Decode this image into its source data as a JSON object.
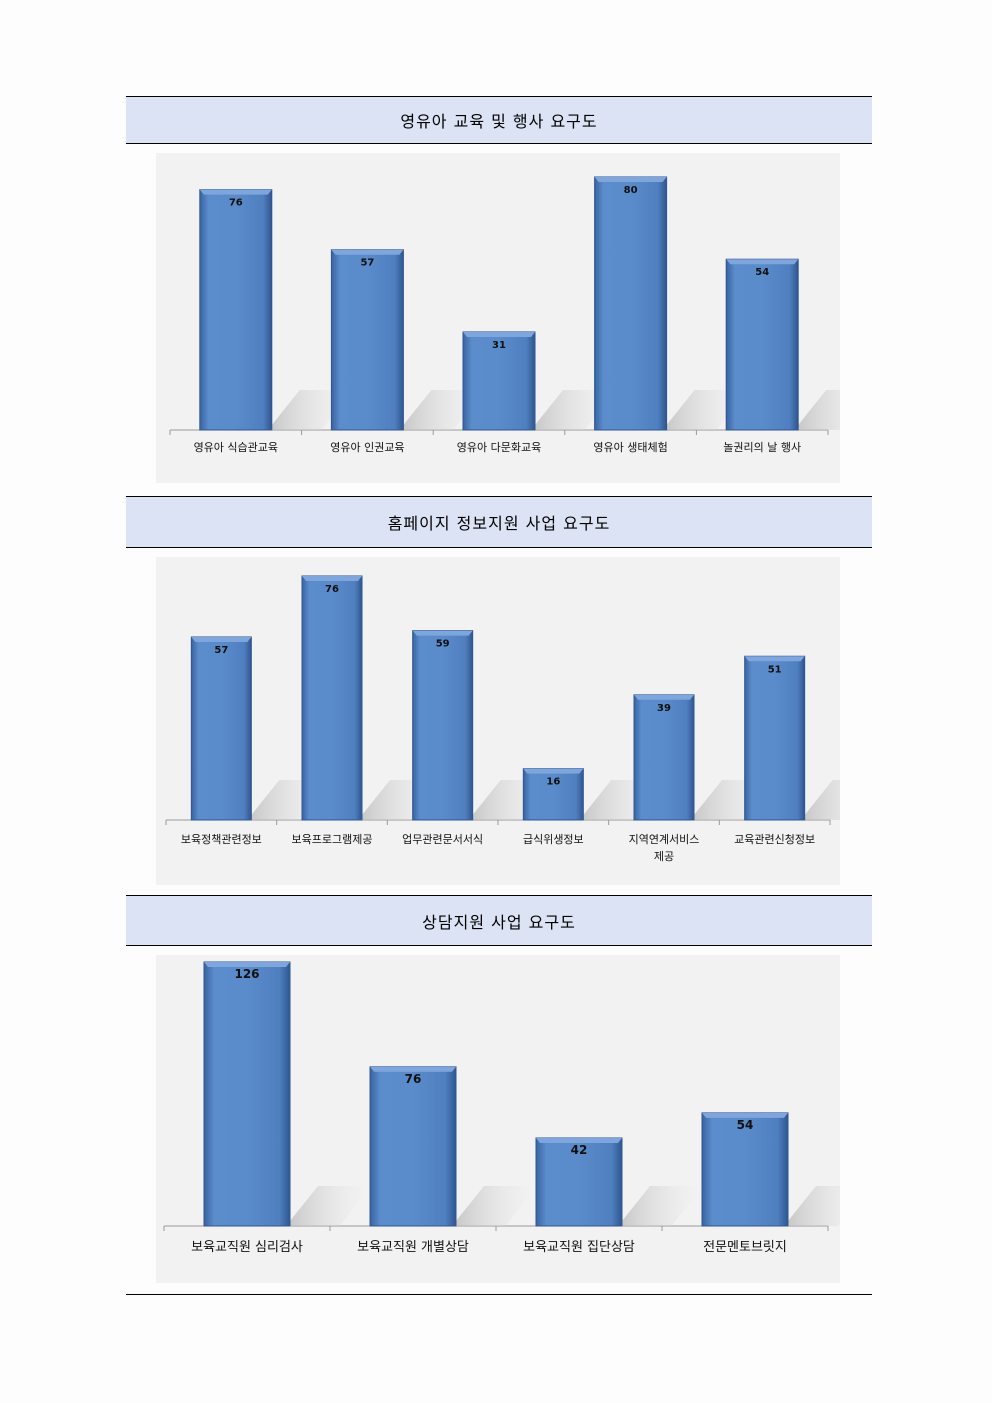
{
  "sections": [
    {
      "title": "영유아 교육 및 행사 요구도"
    },
    {
      "title": "홈페이지 정보지원 사업 요구도"
    },
    {
      "title": "상담지원 사업 요구도"
    }
  ],
  "colors": {
    "bar": "#4f81bd",
    "header_bg": "#dbe3f4",
    "plot_bg": "#f2f2f2"
  },
  "chart_data": [
    {
      "type": "bar",
      "title": "영유아 교육 및 행사 요구도",
      "categories": [
        "영유아 식습관교육",
        "영유아 인권교육",
        "영유아 다문화교육",
        "영유아 생태체험",
        "놀권리의 날 행사"
      ],
      "values": [
        76,
        57,
        31,
        80,
        54
      ],
      "ylim": [
        0,
        80
      ],
      "grid": false,
      "legend": "none"
    },
    {
      "type": "bar",
      "title": "홈페이지 정보지원 사업 요구도",
      "categories": [
        "보육정책관련정보",
        "보육프로그램제공",
        "업무관련문서서식",
        "급식위생정보",
        "지역연계서비스 제공",
        "교육관련신청정보"
      ],
      "values": [
        57,
        76,
        59,
        16,
        39,
        51
      ],
      "ylim": [
        0,
        76
      ],
      "grid": false,
      "legend": "none"
    },
    {
      "type": "bar",
      "title": "상담지원 사업 요구도",
      "categories": [
        "보육교직원 심리검사",
        "보육교직원 개별상담",
        "보육교직원 집단상담",
        "전문멘토브릿지"
      ],
      "values": [
        126,
        76,
        42,
        54
      ],
      "ylim": [
        0,
        126
      ],
      "grid": false,
      "legend": "none"
    }
  ]
}
